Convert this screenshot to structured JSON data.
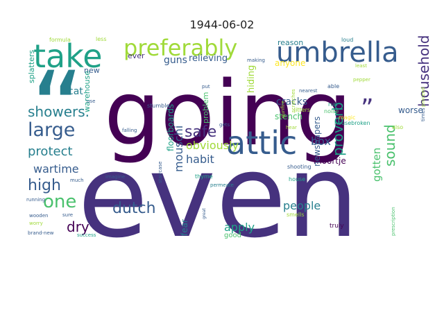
{
  "title": "1944-06-02",
  "palette": [
    "#440154",
    "#46327e",
    "#365c8d",
    "#277f8e",
    "#1fa187",
    "#4ac16d",
    "#a0da39",
    "#fde725"
  ],
  "words": [
    "going",
    "even",
    "take",
    "umbrella",
    "preferably",
    "attic",
    "large",
    "showers.",
    "protect",
    "one",
    "high",
    "dry",
    "dutch",
    "safe",
    "wartime",
    "cat",
    "new",
    "guns",
    "relieving",
    "ever",
    "obviously",
    "habit",
    "mouschi",
    "household",
    "sound",
    "proverb",
    "gotten",
    "people",
    "apply",
    "box",
    "moortje",
    "newspapers",
    "hiding",
    "cracks",
    "stench",
    "anyone",
    "reason",
    "worse",
    "floorboards",
    "warehouse",
    "problem",
    "fear",
    "good",
    "splatters",
    "formula",
    "less",
    "loud",
    "least",
    "pepper",
    "proceed",
    "able",
    "run",
    "noise",
    "magic",
    "jitters",
    "housebroken",
    "also",
    "times",
    "prescription",
    "truly",
    "smells",
    "house",
    "hear",
    "nearest",
    "gunfire",
    "scratches",
    "put",
    "making",
    "stumble",
    "falling",
    "gets",
    "shooting",
    "permeate",
    "thyme",
    "staircase",
    "imagine",
    "much",
    "running",
    "wooden",
    "sure",
    "worry",
    "brand-new",
    "success",
    "great",
    "use",
    "“",
    "”"
  ]
}
